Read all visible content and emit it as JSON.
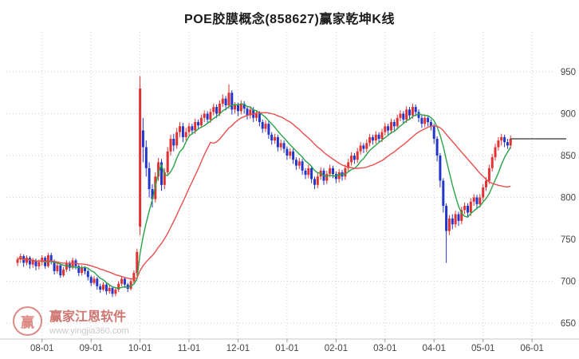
{
  "page": {
    "title": "POE胶膜概念(858627)赢家乾坤K线"
  },
  "watermark": {
    "logo_char": "赢",
    "brand": "赢家江恩软件",
    "url": "www.yingjia360.com"
  },
  "chart_data": {
    "type": "candlestick",
    "title": "POE胶膜概念(858627)赢家乾坤K线",
    "legend_position": "none",
    "grid": true,
    "y_axis_side": "right",
    "y_ticks": [
      650,
      700,
      750,
      800,
      850,
      900,
      950
    ],
    "ylim": [
      640,
      960
    ],
    "last_price": 870,
    "x_ticks": [
      {
        "label": "08-01",
        "index": 8
      },
      {
        "label": "09-01",
        "index": 24
      },
      {
        "label": "10-01",
        "index": 40
      },
      {
        "label": "11-01",
        "index": 56
      },
      {
        "label": "12-01",
        "index": 72
      },
      {
        "label": "01-01",
        "index": 88
      },
      {
        "label": "02-01",
        "index": 104
      },
      {
        "label": "03-01",
        "index": 120
      },
      {
        "label": "04-01",
        "index": 136
      },
      {
        "label": "05-01",
        "index": 152
      },
      {
        "label": "06-01",
        "index": 168
      }
    ],
    "colors": {
      "up": "#e03232",
      "down": "#2336c9",
      "ma_fast": "#28a348",
      "ma_slow": "#ea4d4d",
      "grid": "#cfcfcf",
      "axis_line": "#c5c5c5",
      "axis_text": "#444444",
      "last_price_line": "#333333"
    },
    "ma_lines": [
      {
        "name": "fast",
        "window": 8,
        "color_key": "ma_fast"
      },
      {
        "name": "slow",
        "window": 24,
        "color_key": "ma_slow"
      }
    ],
    "candle_format": [
      "open",
      "close",
      "low",
      "high"
    ],
    "candles": [
      [
        722,
        726,
        718,
        729
      ],
      [
        726,
        730,
        722,
        733
      ],
      [
        730,
        722,
        717,
        732
      ],
      [
        722,
        728,
        719,
        731
      ],
      [
        728,
        720,
        715,
        730
      ],
      [
        720,
        725,
        716,
        728
      ],
      [
        725,
        718,
        713,
        727
      ],
      [
        718,
        723,
        714,
        726
      ],
      [
        723,
        728,
        719,
        731
      ],
      [
        728,
        718,
        715,
        730
      ],
      [
        718,
        731,
        716,
        734
      ],
      [
        731,
        724,
        720,
        734
      ],
      [
        724,
        712,
        708,
        726
      ],
      [
        712,
        719,
        709,
        722
      ],
      [
        719,
        707,
        704,
        721
      ],
      [
        707,
        714,
        705,
        717
      ],
      [
        714,
        722,
        711,
        725
      ],
      [
        722,
        716,
        712,
        724
      ],
      [
        716,
        725,
        714,
        728
      ],
      [
        725,
        718,
        714,
        727
      ],
      [
        718,
        710,
        706,
        720
      ],
      [
        710,
        716,
        707,
        719
      ],
      [
        716,
        712,
        708,
        718
      ],
      [
        712,
        705,
        701,
        714
      ],
      [
        705,
        698,
        694,
        707
      ],
      [
        698,
        703,
        696,
        706
      ],
      [
        703,
        694,
        690,
        705
      ],
      [
        694,
        690,
        686,
        697
      ],
      [
        690,
        696,
        688,
        699
      ],
      [
        696,
        688,
        684,
        698
      ],
      [
        688,
        692,
        685,
        695
      ],
      [
        692,
        685,
        681,
        694
      ],
      [
        685,
        690,
        682,
        693
      ],
      [
        690,
        697,
        687,
        700
      ],
      [
        697,
        703,
        694,
        706
      ],
      [
        703,
        696,
        692,
        705
      ],
      [
        696,
        691,
        687,
        698
      ],
      [
        691,
        700,
        689,
        703
      ],
      [
        700,
        710,
        697,
        713
      ],
      [
        710,
        735,
        706,
        739
      ],
      [
        765,
        930,
        755,
        945
      ],
      [
        880,
        860,
        842,
        895
      ],
      [
        860,
        835,
        825,
        868
      ],
      [
        835,
        810,
        800,
        842
      ],
      [
        810,
        798,
        788,
        816
      ],
      [
        798,
        825,
        794,
        830
      ],
      [
        825,
        842,
        820,
        847
      ],
      [
        842,
        815,
        808,
        846
      ],
      [
        815,
        830,
        810,
        835
      ],
      [
        830,
        855,
        826,
        860
      ],
      [
        855,
        870,
        850,
        875
      ],
      [
        870,
        862,
        855,
        876
      ],
      [
        862,
        878,
        858,
        883
      ],
      [
        878,
        885,
        872,
        890
      ],
      [
        885,
        872,
        866,
        889
      ],
      [
        872,
        878,
        868,
        883
      ],
      [
        878,
        885,
        874,
        889
      ],
      [
        885,
        880,
        875,
        888
      ],
      [
        880,
        890,
        876,
        894
      ],
      [
        890,
        886,
        881,
        893
      ],
      [
        886,
        895,
        883,
        899
      ],
      [
        895,
        900,
        890,
        904
      ],
      [
        900,
        893,
        888,
        903
      ],
      [
        893,
        902,
        889,
        906
      ],
      [
        902,
        908,
        898,
        912
      ],
      [
        908,
        900,
        895,
        911
      ],
      [
        900,
        912,
        897,
        916
      ],
      [
        912,
        918,
        908,
        923
      ],
      [
        918,
        910,
        904,
        921
      ],
      [
        910,
        925,
        906,
        935
      ],
      [
        925,
        905,
        899,
        928
      ],
      [
        905,
        910,
        900,
        914
      ],
      [
        910,
        903,
        897,
        913
      ],
      [
        903,
        912,
        899,
        916
      ],
      [
        912,
        906,
        900,
        915
      ],
      [
        906,
        898,
        893,
        909
      ],
      [
        898,
        905,
        894,
        909
      ],
      [
        905,
        895,
        890,
        908
      ],
      [
        895,
        900,
        891,
        904
      ],
      [
        900,
        890,
        885,
        903
      ],
      [
        890,
        882,
        877,
        893
      ],
      [
        882,
        888,
        878,
        892
      ],
      [
        888,
        875,
        870,
        891
      ],
      [
        875,
        868,
        863,
        878
      ],
      [
        868,
        872,
        864,
        876
      ],
      [
        872,
        860,
        855,
        875
      ],
      [
        860,
        865,
        856,
        869
      ],
      [
        865,
        858,
        853,
        868
      ],
      [
        858,
        850,
        845,
        861
      ],
      [
        850,
        855,
        846,
        859
      ],
      [
        855,
        845,
        840,
        858
      ],
      [
        845,
        838,
        833,
        848
      ],
      [
        838,
        843,
        834,
        847
      ],
      [
        843,
        832,
        827,
        846
      ],
      [
        832,
        827,
        822,
        835
      ],
      [
        827,
        835,
        823,
        839
      ],
      [
        835,
        822,
        817,
        838
      ],
      [
        822,
        815,
        810,
        825
      ],
      [
        815,
        825,
        811,
        829
      ],
      [
        825,
        832,
        821,
        836
      ],
      [
        832,
        820,
        815,
        835
      ],
      [
        820,
        828,
        816,
        832
      ],
      [
        828,
        835,
        824,
        839
      ],
      [
        835,
        828,
        823,
        838
      ],
      [
        828,
        822,
        817,
        831
      ],
      [
        822,
        830,
        818,
        834
      ],
      [
        830,
        825,
        820,
        833
      ],
      [
        825,
        835,
        821,
        839
      ],
      [
        835,
        842,
        831,
        846
      ],
      [
        842,
        850,
        838,
        854
      ],
      [
        850,
        845,
        840,
        853
      ],
      [
        845,
        855,
        841,
        859
      ],
      [
        855,
        862,
        851,
        866
      ],
      [
        862,
        858,
        853,
        865
      ],
      [
        858,
        865,
        854,
        869
      ],
      [
        865,
        872,
        861,
        876
      ],
      [
        872,
        868,
        863,
        875
      ],
      [
        868,
        875,
        864,
        879
      ],
      [
        875,
        870,
        865,
        878
      ],
      [
        870,
        878,
        866,
        882
      ],
      [
        878,
        885,
        874,
        889
      ],
      [
        885,
        880,
        875,
        888
      ],
      [
        880,
        890,
        876,
        894
      ],
      [
        890,
        885,
        880,
        893
      ],
      [
        885,
        895,
        881,
        899
      ],
      [
        895,
        900,
        891,
        904
      ],
      [
        900,
        893,
        888,
        903
      ],
      [
        893,
        905,
        889,
        909
      ],
      [
        905,
        898,
        893,
        908
      ],
      [
        898,
        908,
        894,
        912
      ],
      [
        908,
        902,
        897,
        911
      ],
      [
        902,
        895,
        890,
        905
      ],
      [
        895,
        888,
        883,
        898
      ],
      [
        888,
        895,
        884,
        899
      ],
      [
        895,
        890,
        885,
        898
      ],
      [
        890,
        885,
        880,
        893
      ],
      [
        885,
        870,
        864,
        888
      ],
      [
        870,
        850,
        843,
        873
      ],
      [
        850,
        820,
        812,
        853
      ],
      [
        820,
        790,
        782,
        823
      ],
      [
        790,
        760,
        722,
        793
      ],
      [
        760,
        775,
        755,
        779
      ],
      [
        775,
        768,
        762,
        780
      ],
      [
        768,
        780,
        764,
        784
      ],
      [
        780,
        772,
        766,
        783
      ],
      [
        772,
        785,
        768,
        789
      ],
      [
        785,
        790,
        780,
        794
      ],
      [
        790,
        782,
        776,
        793
      ],
      [
        782,
        795,
        778,
        799
      ],
      [
        795,
        800,
        790,
        804
      ],
      [
        800,
        792,
        786,
        803
      ],
      [
        792,
        800,
        788,
        804
      ],
      [
        800,
        812,
        796,
        816
      ],
      [
        812,
        820,
        808,
        824
      ],
      [
        820,
        835,
        816,
        839
      ],
      [
        835,
        848,
        831,
        852
      ],
      [
        848,
        860,
        844,
        864
      ],
      [
        860,
        868,
        856,
        872
      ],
      [
        868,
        872,
        862,
        876
      ],
      [
        872,
        866,
        860,
        875
      ],
      [
        866,
        862,
        858,
        870
      ],
      [
        862,
        870,
        858,
        874
      ]
    ]
  }
}
